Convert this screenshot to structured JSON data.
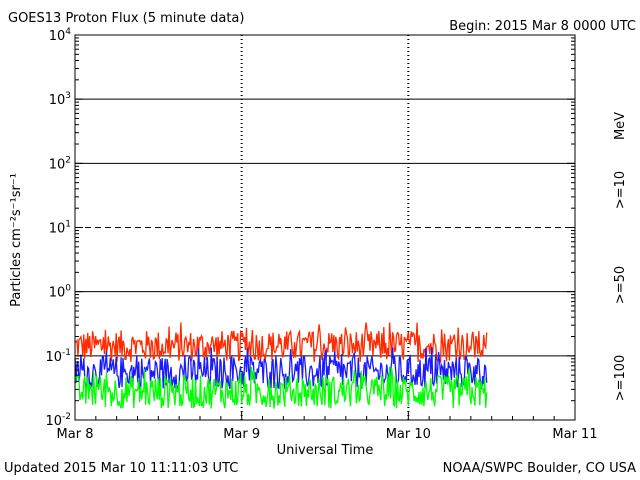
{
  "chart_data": {
    "type": "line",
    "title": "GOES13 Proton Flux (5 minute data)",
    "begin_label": "Begin: 2015 Mar 8 0000 UTC",
    "xlabel": "Universal Time",
    "ylabel": "Particles cm⁻²s⁻¹sr⁻¹",
    "yscale": "log",
    "ylim": [
      0.01,
      10000
    ],
    "x_ticks": [
      "Mar 8",
      "Mar 9",
      "Mar 10",
      "Mar 11"
    ],
    "x_range_days": [
      0,
      3
    ],
    "y_ticks": [
      {
        "base": "10",
        "exp": "-2"
      },
      {
        "base": "10",
        "exp": "-1"
      },
      {
        "base": "10",
        "exp": "0"
      },
      {
        "base": "10",
        "exp": "1"
      },
      {
        "base": "10",
        "exp": "2"
      },
      {
        "base": "10",
        "exp": "3"
      },
      {
        "base": "10",
        "exp": "4"
      }
    ],
    "threshold_lines": [
      {
        "value": 0.1,
        "style": "solid"
      },
      {
        "value": 1,
        "style": "solid"
      },
      {
        "value": 10,
        "style": "dashed"
      },
      {
        "value": 100,
        "style": "solid"
      },
      {
        "value": 1000,
        "style": "solid"
      }
    ],
    "data_end_day": 2.47,
    "series": [
      {
        "name": ">=10",
        "color": "#ff2a00",
        "typical_low": 0.08,
        "typical_high": 0.25
      },
      {
        "name": ">=50",
        "color": "#1a1aff",
        "typical_low": 0.03,
        "typical_high": 0.1
      },
      {
        "name": ">=100",
        "color": "#00ff00",
        "typical_low": 0.015,
        "typical_high": 0.05
      }
    ],
    "unit_label": "MeV"
  },
  "footer": {
    "updated": "Updated 2015 Mar 10 11:11:03 UTC",
    "source": "NOAA/SWPC Boulder, CO USA"
  }
}
